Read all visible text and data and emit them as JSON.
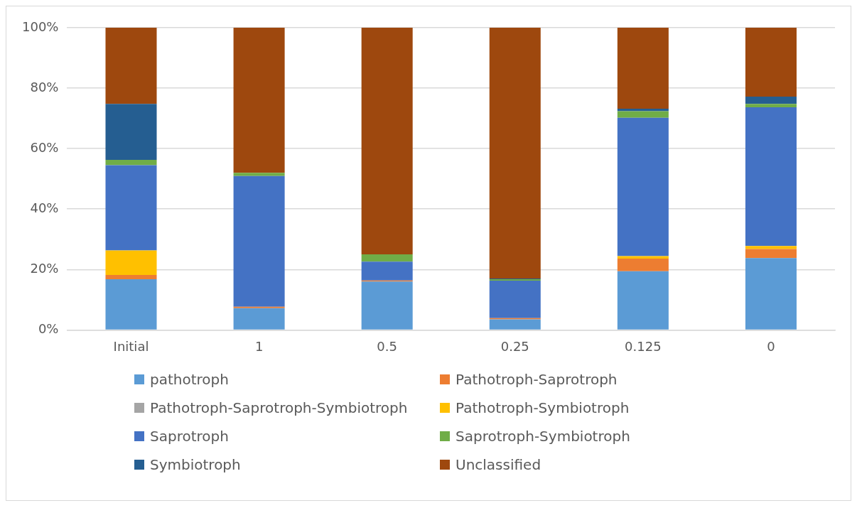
{
  "chart_data": {
    "type": "bar",
    "stacked": true,
    "categories": [
      "Initial",
      "1",
      "0.5",
      "0.25",
      "0.125",
      "0"
    ],
    "ylim": [
      0,
      100
    ],
    "yticks": [
      {
        "value": 0,
        "label": "0%"
      },
      {
        "value": 20,
        "label": "20%"
      },
      {
        "value": 40,
        "label": "40%"
      },
      {
        "value": 60,
        "label": "60%"
      },
      {
        "value": 80,
        "label": "80%"
      },
      {
        "value": 100,
        "label": "100%"
      }
    ],
    "grid": "y",
    "legend": "bottom",
    "series": [
      {
        "name": "pathotroph",
        "color": "#5b9bd5",
        "values": [
          16.8,
          7.2,
          16.0,
          3.5,
          19.4,
          23.8
        ]
      },
      {
        "name": "Pathotroph-Saprotroph",
        "color": "#ed7d31",
        "values": [
          1.4,
          0.5,
          0.4,
          0.4,
          4.2,
          3.0
        ]
      },
      {
        "name": "Pathotroph-Saprotroph-Symbiotroph",
        "color": "#a5a5a5",
        "values": [
          0,
          0,
          0,
          0,
          null,
          0
        ]
      },
      {
        "name": "Pathotroph-Symbiotroph",
        "color": "#ffc000",
        "values": [
          8.1,
          0,
          0,
          0,
          0.8,
          1.0
        ]
      },
      {
        "name": "Saprotroph",
        "color": "#4472c4",
        "values": [
          28.2,
          43.2,
          6.2,
          12.4,
          45.8,
          45.9
        ]
      },
      {
        "name": "Saprotroph-Symbiotroph",
        "color": "#70ad47",
        "values": [
          1.8,
          1.1,
          2.4,
          0.5,
          2.2,
          1.1
        ]
      },
      {
        "name": "Symbiotroph",
        "color": "#255e91",
        "values": [
          18.5,
          0,
          0,
          0.2,
          0.8,
          2.4
        ]
      },
      {
        "name": "Unclassified",
        "color": "#9e480e",
        "values": [
          25.2,
          48.0,
          75.0,
          83.0,
          26.8,
          22.8
        ]
      }
    ]
  }
}
